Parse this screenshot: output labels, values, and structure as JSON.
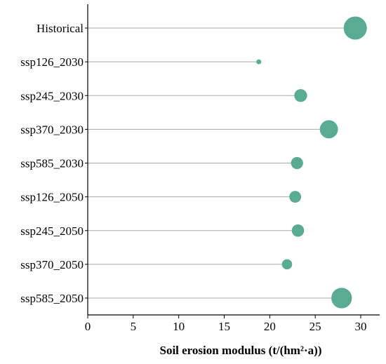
{
  "chart_data": {
    "type": "scatter",
    "subtype": "lollipop-bubble",
    "title": "",
    "xlabel": "Soil erosion modulus (t/(hm²·a))",
    "ylabel": "",
    "xlim": [
      0,
      32
    ],
    "xticks": [
      0,
      5,
      10,
      15,
      20,
      25,
      30
    ],
    "grid": false,
    "legend": "none",
    "marker_color": "#5aab93",
    "stem_color": "#a8a8a8",
    "categories": [
      "Historical",
      "ssp126_2030",
      "ssp245_2030",
      "ssp370_2030",
      "ssp585_2030",
      "ssp126_2050",
      "ssp245_2050",
      "ssp370_2050",
      "ssp585_2050"
    ],
    "values": [
      29.4,
      18.8,
      23.4,
      26.5,
      23.0,
      22.8,
      23.1,
      21.9,
      27.9
    ]
  }
}
